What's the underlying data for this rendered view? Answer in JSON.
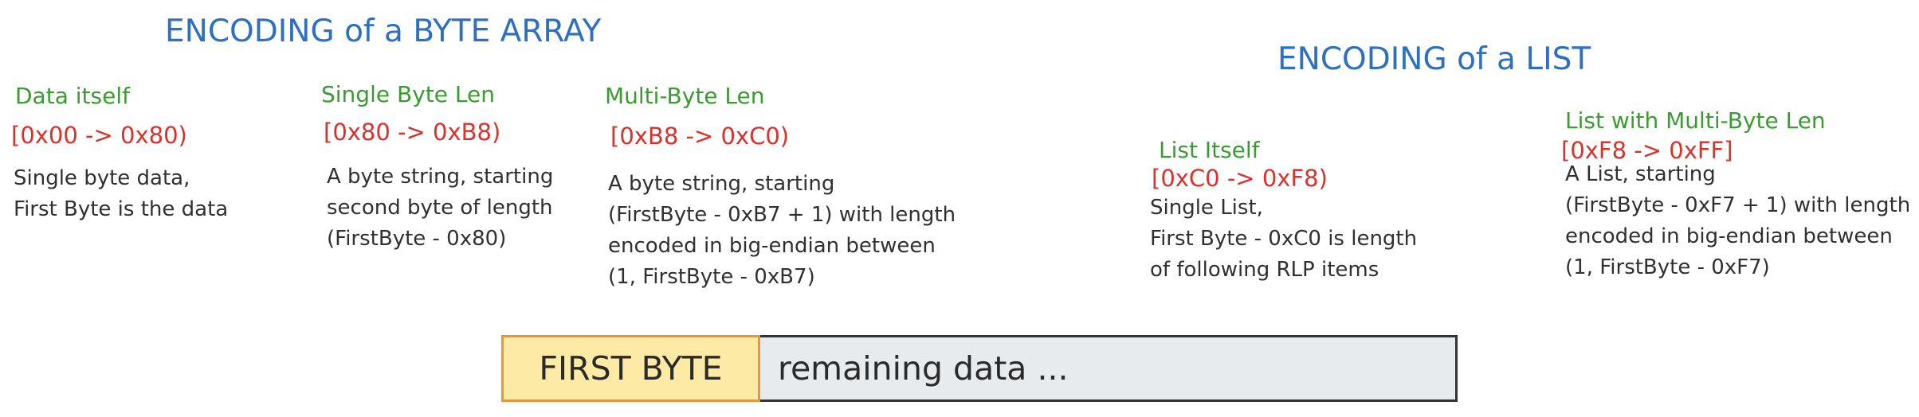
{
  "headings": {
    "byte_array": "ENCODING of a BYTE ARRAY",
    "list": "ENCODING of a LIST"
  },
  "sections": [
    {
      "title": "Data itself",
      "range": "[0x00 -> 0x80)",
      "lines": [
        "Single byte data,",
        "First Byte is the data"
      ]
    },
    {
      "title": "Single Byte Len",
      "range": "[0x80 -> 0xB8)",
      "lines": [
        "A byte string, starting",
        "second byte of length",
        "(FirstByte - 0x80)"
      ]
    },
    {
      "title": "Multi-Byte Len",
      "range": "[0xB8 -> 0xC0)",
      "lines": [
        "A byte string, starting",
        "(FirstByte - 0xB7 + 1) with length",
        "encoded in big-endian between",
        "(1, FirstByte - 0xB7)"
      ]
    },
    {
      "title": "List Itself",
      "range": "[0xC0 -> 0xF8)",
      "lines": [
        "Single List,",
        "First Byte - 0xC0 is length",
        "of following RLP items"
      ]
    },
    {
      "title": "List with Multi-Byte Len",
      "range": "[0xF8 -> 0xFF]",
      "lines": [
        "A List, starting",
        "(FirstByte - 0xF7 + 1) with length",
        "encoded in big-endian between",
        "(1, FirstByte - 0xF7)"
      ]
    }
  ],
  "bar": {
    "first_byte": "FIRST BYTE",
    "remaining": "remaining data ..."
  },
  "colors": {
    "heading": "#2f6fc1",
    "section_title": "#3b9b32",
    "range": "#d9312c",
    "first_byte_fill": "#fdeaa5",
    "first_byte_border": "#e9963a",
    "remaining_fill": "#e8ebee"
  }
}
